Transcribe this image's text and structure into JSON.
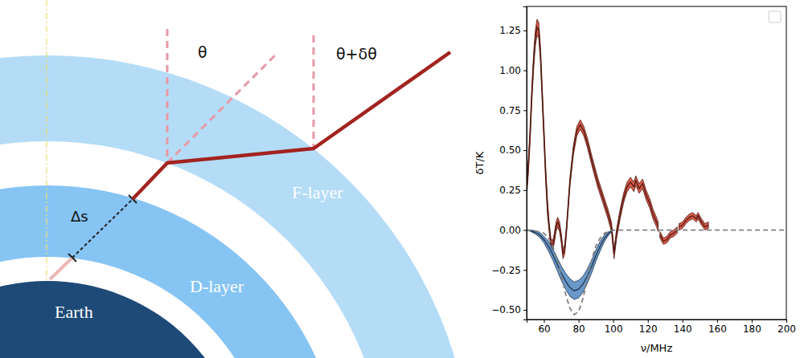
{
  "diagram": {
    "labels": {
      "earth": "Earth",
      "d_layer": "D-layer",
      "f_layer": "F-layer",
      "theta": "θ",
      "theta_delta": "θ+δθ",
      "delta_s": "Δs"
    }
  },
  "chart_data": {
    "type": "line",
    "xlabel": "ν/MHz",
    "ylabel": "δT/K",
    "xlim": [
      50,
      200
    ],
    "ylim": [
      -0.56,
      1.4
    ],
    "xticks": [
      60,
      80,
      100,
      120,
      140,
      160,
      180,
      200
    ],
    "yticks": [
      {
        "value": -0.5,
        "label": "−0.50"
      },
      {
        "value": -0.25,
        "label": "−0.25"
      },
      {
        "value": 0,
        "label": "0.00"
      },
      {
        "value": 0.25,
        "label": "0.25"
      },
      {
        "value": 0.5,
        "label": "0.50"
      },
      {
        "value": 0.75,
        "label": "0.75"
      },
      {
        "value": 1,
        "label": "1.00"
      },
      {
        "value": 1.25,
        "label": "1.25"
      }
    ],
    "series": [
      {
        "type": "band",
        "color": "#d03e2a",
        "x": [
          50,
          51,
          52,
          53,
          54,
          55,
          56,
          57,
          58,
          59,
          60,
          61,
          62,
          63,
          64,
          65,
          66,
          67,
          68,
          69,
          70,
          71,
          72,
          73,
          74,
          75,
          77,
          79,
          81,
          83,
          85,
          88,
          91,
          94,
          97,
          99,
          100.5,
          102,
          104,
          106,
          108,
          110,
          112,
          113,
          115,
          117,
          119,
          121,
          123,
          125,
          126,
          126.5,
          127,
          129,
          131,
          133,
          135,
          137,
          137.5,
          138,
          140,
          142,
          144,
          146,
          148,
          149,
          151,
          153,
          155
        ],
        "values": [
          0.25,
          0.4,
          0.6,
          0.85,
          1.05,
          1.2,
          1.27,
          1.25,
          1.1,
          0.85,
          0.6,
          0.35,
          0.15,
          0.02,
          -0.08,
          -0.1,
          -0.05,
          0.02,
          0.05,
          0.02,
          -0.05,
          -0.15,
          -0.12,
          0,
          0.15,
          0.3,
          0.5,
          0.62,
          0.66,
          0.62,
          0.55,
          0.42,
          0.3,
          0.2,
          0.1,
          0.02,
          -0.15,
          -0.02,
          0.1,
          0.2,
          0.27,
          0.3,
          0.27,
          0.31,
          0.26,
          0.29,
          0.22,
          0.17,
          0.1,
          0.05,
          0.02,
          null,
          -0.03,
          -0.07,
          -0.06,
          -0.03,
          -0.02,
          0,
          null,
          0.02,
          0.03,
          0.06,
          0.08,
          0.09,
          0.07,
          0.09,
          0.05,
          0.02,
          0.03
        ],
        "errors": [
          0.05,
          0.05,
          0.05,
          0.05,
          0.05,
          0.05,
          0.05,
          0.05,
          0.05,
          0.05,
          0.05,
          0.05,
          0.05,
          0.03,
          0.03,
          0.03,
          0.03,
          0.03,
          0.03,
          0.03,
          0.03,
          0.03,
          0.03,
          0.03,
          0.03,
          0.03,
          0.03,
          0.03,
          0.03,
          0.03,
          0.03,
          0.03,
          0.03,
          0.03,
          0.03,
          0.03,
          0.03,
          0.03,
          0.03,
          0.03,
          0.03,
          0.03,
          0.03,
          0.03,
          0.03,
          0.03,
          0.03,
          0.03,
          0.03,
          0.03,
          0.03,
          null,
          0.02,
          0.02,
          0.02,
          0.02,
          0.02,
          0.02,
          null,
          0.02,
          0.02,
          0.02,
          0.02,
          0.02,
          0.02,
          0.02,
          0.02,
          0.02,
          0.02
        ]
      },
      {
        "type": "band",
        "color": "#4f86c0",
        "x": [
          50,
          52.5,
          55,
          57.5,
          60,
          62.5,
          65,
          67.5,
          70,
          72.5,
          75,
          77.5,
          80,
          82.5,
          85,
          87.5,
          90,
          92.5,
          95,
          97.5,
          100
        ],
        "values": [
          0,
          -0.005,
          -0.015,
          -0.03,
          -0.06,
          -0.1,
          -0.15,
          -0.21,
          -0.27,
          -0.32,
          -0.36,
          -0.38,
          -0.37,
          -0.34,
          -0.29,
          -0.23,
          -0.16,
          -0.1,
          -0.05,
          -0.02,
          0
        ],
        "errors": [
          0,
          0.005,
          0.01,
          0.015,
          0.02,
          0.03,
          0.035,
          0.04,
          0.045,
          0.05,
          0.055,
          0.055,
          0.055,
          0.05,
          0.045,
          0.04,
          0.035,
          0.03,
          0.02,
          0.01,
          0
        ]
      },
      {
        "type": "line",
        "color": "#808080",
        "line_style": "dashed",
        "x": [
          50,
          55,
          60,
          62.5,
          65,
          67.5,
          70,
          72.5,
          75,
          77.5,
          80,
          82.5,
          85,
          87.5,
          90,
          92.5,
          95,
          100,
          200
        ],
        "values": [
          0,
          -0.005,
          -0.02,
          -0.05,
          -0.1,
          -0.18,
          -0.28,
          -0.4,
          -0.49,
          -0.53,
          -0.51,
          -0.43,
          -0.31,
          -0.19,
          -0.1,
          -0.05,
          -0.02,
          0,
          0
        ]
      }
    ]
  }
}
